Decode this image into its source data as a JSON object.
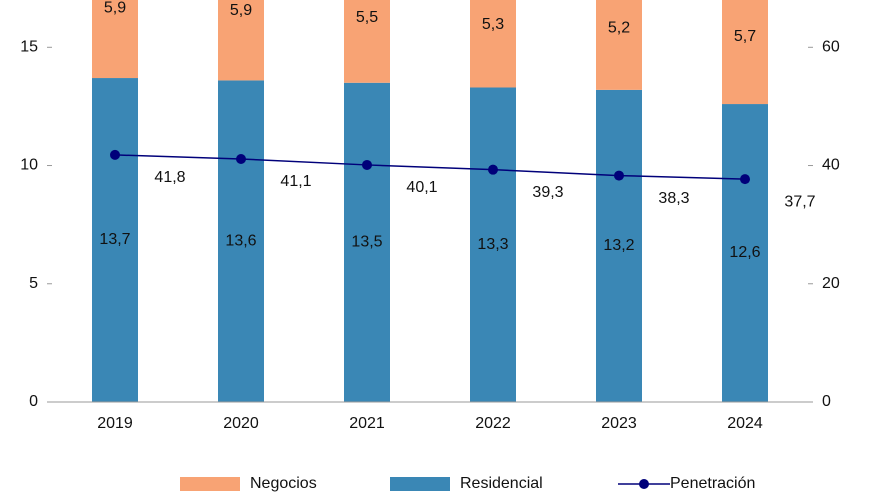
{
  "chart_data": {
    "type": "stacked-bar-line",
    "categories": [
      "2019",
      "2020",
      "2021",
      "2022",
      "2023",
      "2024"
    ],
    "series": [
      {
        "name": "Negocios",
        "color": "#f8a374",
        "values": [
          5.9,
          5.9,
          5.5,
          5.3,
          5.2,
          5.7
        ],
        "value_labels": [
          "5,9",
          "5,9",
          "5,5",
          "5,3",
          "5,2",
          "5,7"
        ]
      },
      {
        "name": "Residencial",
        "color": "#3a87b5",
        "values": [
          13.7,
          13.6,
          13.5,
          13.3,
          13.2,
          12.6
        ],
        "value_labels": [
          "13,7",
          "13,6",
          "13,5",
          "13,3",
          "13,2",
          "12,6"
        ]
      },
      {
        "name": "Penetración",
        "color": "#00007a",
        "axis": "y2",
        "values": [
          41.8,
          41.1,
          40.1,
          39.3,
          38.3,
          37.7
        ],
        "value_labels": [
          "41,8",
          "41,1",
          "40,1",
          "39,3",
          "38,3",
          "37,7"
        ]
      }
    ],
    "ylim": [
      0,
      17
    ],
    "yticks": [
      0,
      5,
      10,
      15
    ],
    "y2lim": [
      0,
      68
    ],
    "y2ticks": [
      0,
      20,
      40,
      60
    ]
  }
}
